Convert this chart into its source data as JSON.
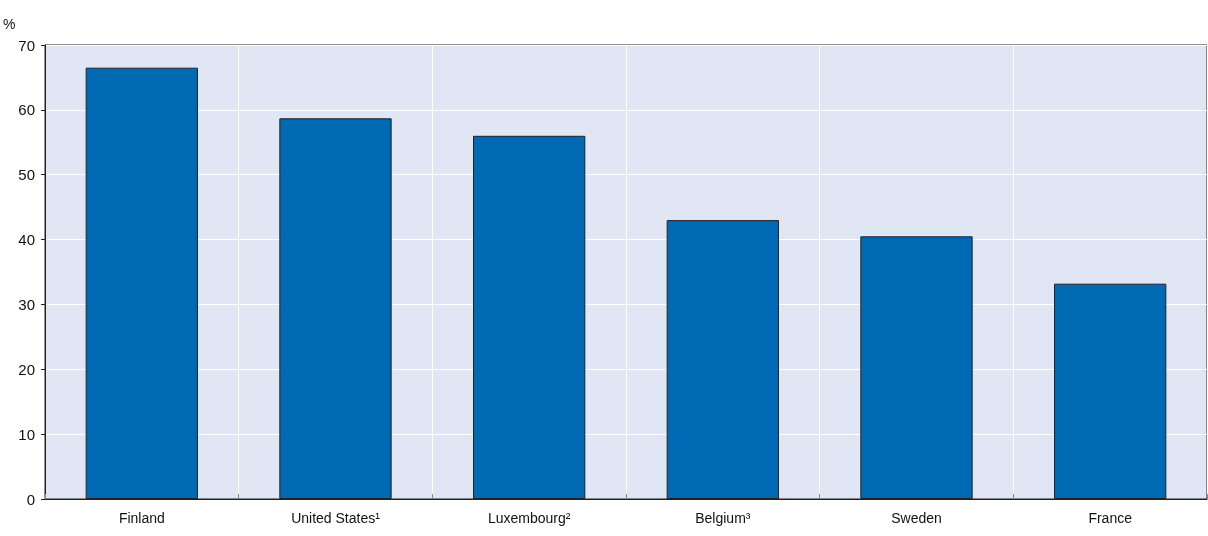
{
  "chart_data": {
    "type": "bar",
    "ylabel": "%",
    "categories": [
      "Finland",
      "United States¹",
      "Luxembourg²",
      "Belgium³",
      "Sweden",
      "France"
    ],
    "values": [
      66.5,
      58.7,
      56.0,
      43.0,
      40.5,
      33.2
    ],
    "color": "#0069b4",
    "ylim": [
      0,
      70
    ],
    "yticks": [
      0,
      10,
      20,
      30,
      40,
      50,
      60,
      70
    ],
    "grid": true
  }
}
